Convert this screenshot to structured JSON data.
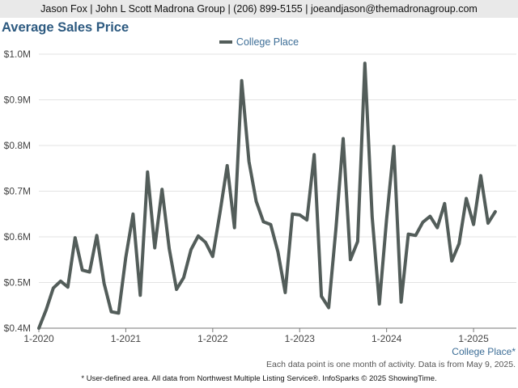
{
  "header": {
    "text": "Jason Fox | John L Scott Madrona Group | (206) 899-5155 | joeandjason@themadronagroup.com"
  },
  "chart_data": {
    "type": "line",
    "title": "Average Sales Price",
    "xlabel": "",
    "ylabel": "",
    "y_ticks": [
      0.4,
      0.5,
      0.6,
      0.7,
      0.8,
      0.9,
      1.0
    ],
    "y_tick_labels": [
      "$0.4M",
      "$0.5M",
      "$0.6M",
      "$0.7M",
      "$0.8M",
      "$0.9M",
      "$1.0M"
    ],
    "ylim": [
      0.4,
      1.0
    ],
    "x_tick_labels": [
      "1-2020",
      "1-2021",
      "1-2022",
      "1-2023",
      "1-2024",
      "1-2025"
    ],
    "xlim": [
      "1-2020",
      "4-2025"
    ],
    "grid": true,
    "legend_position": "top-center",
    "series": [
      {
        "name": "College Place",
        "color": "#535d5a",
        "x": [
          "1-2020",
          "2-2020",
          "3-2020",
          "4-2020",
          "5-2020",
          "6-2020",
          "7-2020",
          "8-2020",
          "9-2020",
          "10-2020",
          "11-2020",
          "12-2020",
          "1-2021",
          "2-2021",
          "3-2021",
          "4-2021",
          "5-2021",
          "6-2021",
          "7-2021",
          "8-2021",
          "9-2021",
          "10-2021",
          "11-2021",
          "12-2021",
          "1-2022",
          "2-2022",
          "3-2022",
          "4-2022",
          "5-2022",
          "6-2022",
          "7-2022",
          "8-2022",
          "9-2022",
          "10-2022",
          "11-2022",
          "12-2022",
          "1-2023",
          "2-2023",
          "3-2023",
          "4-2023",
          "5-2023",
          "6-2023",
          "7-2023",
          "8-2023",
          "9-2023",
          "10-2023",
          "11-2023",
          "12-2023",
          "1-2024",
          "2-2024",
          "3-2024",
          "4-2024",
          "5-2024",
          "6-2024",
          "7-2024",
          "8-2024",
          "9-2024",
          "10-2024",
          "11-2024",
          "12-2024",
          "1-2025",
          "2-2025",
          "3-2025",
          "4-2025"
        ],
        "values": [
          0.4,
          0.44,
          0.488,
          0.503,
          0.49,
          0.598,
          0.527,
          0.523,
          0.603,
          0.498,
          0.436,
          0.433,
          0.555,
          0.65,
          0.472,
          0.742,
          0.576,
          0.704,
          0.574,
          0.485,
          0.511,
          0.572,
          0.602,
          0.588,
          0.557,
          0.653,
          0.756,
          0.62,
          0.942,
          0.765,
          0.678,
          0.633,
          0.627,
          0.567,
          0.478,
          0.65,
          0.648,
          0.637,
          0.78,
          0.47,
          0.445,
          0.617,
          0.815,
          0.55,
          0.59,
          0.98,
          0.644,
          0.453,
          0.64,
          0.798,
          0.457,
          0.606,
          0.603,
          0.632,
          0.645,
          0.62,
          0.673,
          0.547,
          0.585,
          0.684,
          0.627,
          0.734,
          0.63,
          0.655
        ]
      }
    ]
  },
  "area_label": "College Place*",
  "note": "Each data point is one month of activity. Data is from May 9, 2025.",
  "footer": "* User-defined area. All data from Northwest Multiple Listing Service®. InfoSparks © 2025 ShowingTime."
}
